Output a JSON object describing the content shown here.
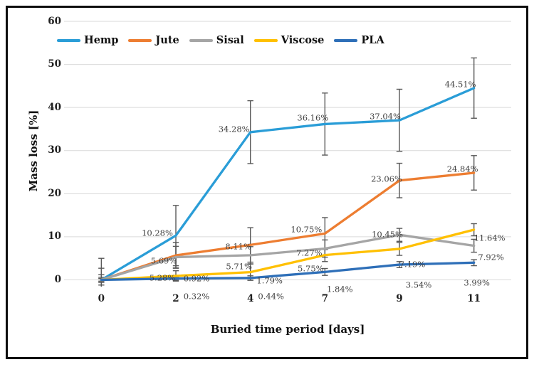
{
  "figure": {
    "background": "#ffffff",
    "border_color": "#0e0e0e"
  },
  "chart_data": {
    "type": "line",
    "title": "",
    "xlabel": "Buried time period [days]",
    "ylabel": "Mass loss [%]",
    "categories": [
      0,
      2,
      4,
      7,
      9,
      11
    ],
    "x_tick_labels": [
      "0",
      "2",
      "4",
      "7",
      "9",
      "11"
    ],
    "y_ticks": [
      0,
      10,
      20,
      30,
      40,
      50,
      60
    ],
    "ylim": [
      0,
      60
    ],
    "grid": "horizontal-only",
    "legend_position": "top-left",
    "error_bars": true,
    "series": [
      {
        "name": "Hemp",
        "color": "#2A9DD7",
        "values": [
          0,
          10.28,
          34.28,
          36.16,
          37.04,
          44.51
        ],
        "errors": [
          5,
          7,
          7.3,
          7.2,
          7.2,
          7
        ],
        "labels": [
          "",
          "10.28%",
          "34.28%",
          "36.16%",
          "37.04%",
          "44.51%"
        ],
        "label_offsets": [
          [
            0,
            0
          ],
          [
            -26,
            -3
          ],
          [
            -23,
            -4
          ],
          [
            -17,
            -8
          ],
          [
            -20,
            -5
          ],
          [
            -19,
            -5
          ]
        ]
      },
      {
        "name": "Jute",
        "color": "#ED7D31",
        "values": [
          0,
          5.69,
          8.11,
          10.75,
          23.06,
          24.84
        ],
        "errors": [
          2.7,
          3,
          4,
          3.7,
          4,
          4
        ],
        "labels": [
          "",
          "5.69%",
          "8.11%",
          "10.75%",
          "23.06%",
          "24.84%"
        ],
        "label_offsets": [
          [
            0,
            0
          ],
          [
            -17,
            8
          ],
          [
            -17,
            3
          ],
          [
            -26,
            -5
          ],
          [
            -18,
            -2
          ],
          [
            -16,
            -5
          ]
        ]
      },
      {
        "name": "Sisal",
        "color": "#A5A5A5",
        "values": [
          0,
          5.28,
          5.71,
          7.27,
          10.45,
          7.92
        ],
        "errors": [
          1.2,
          2.5,
          2,
          2,
          1.5,
          1.5
        ],
        "labels": [
          "",
          "5.28%",
          "5.71%",
          "7.27%",
          "10.45%",
          "7.92%"
        ],
        "label_offsets": [
          [
            0,
            0
          ],
          [
            -19,
            29
          ],
          [
            -16,
            16
          ],
          [
            -22,
            7
          ],
          [
            -17,
            0
          ],
          [
            24,
            16
          ]
        ]
      },
      {
        "name": "Viscose",
        "color": "#FFC000",
        "values": [
          0,
          0.92,
          1.79,
          5.75,
          7.19,
          11.64
        ],
        "errors": [
          0.6,
          1.2,
          1.9,
          1.5,
          1.5,
          1.4
        ],
        "labels": [
          "",
          "0.92%",
          "1.79%",
          "5.75%",
          "7.19%",
          "11.64%"
        ],
        "label_offsets": [
          [
            0,
            0
          ],
          [
            29,
            4
          ],
          [
            27,
            12
          ],
          [
            -20,
            19
          ],
          [
            18,
            22
          ],
          [
            22,
            12
          ]
        ]
      },
      {
        "name": "PLA",
        "color": "#2E6FB8",
        "values": [
          0,
          0.32,
          0.44,
          1.84,
          3.54,
          3.99
        ],
        "errors": [
          0.3,
          0.4,
          0.5,
          0.8,
          0.7,
          0.7
        ],
        "labels": [
          "",
          "0.32%",
          "0.44%",
          "1.84%",
          "3.54%",
          "3.99%"
        ],
        "label_offsets": [
          [
            0,
            0
          ],
          [
            29,
            25
          ],
          [
            29,
            26
          ],
          [
            21,
            25
          ],
          [
            27,
            29
          ],
          [
            4,
            29
          ]
        ]
      }
    ],
    "colors": {
      "gridline": "#D9D9D9",
      "error_bar": "#595959",
      "tick_text": "#1f1f1f",
      "data_label": "#404040"
    }
  }
}
